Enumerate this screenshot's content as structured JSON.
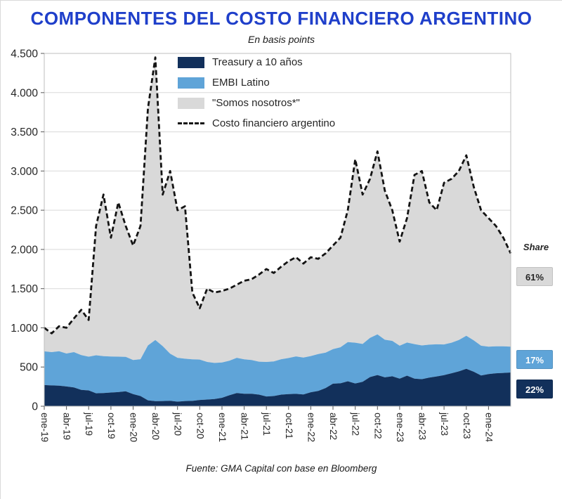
{
  "page": {
    "title": "COMPONENTES DEL COSTO FINANCIERO ARGENTINO",
    "subtitle": "En basis points",
    "source": "Fuente: GMA Capital con base en Bloomberg"
  },
  "share": {
    "label": "Share",
    "items": [
      {
        "value": "61%",
        "bg": "#d9d9d9",
        "fg": "#262626"
      },
      {
        "value": "17%",
        "bg": "#5fa4d8",
        "fg": "#ffffff"
      },
      {
        "value": "22%",
        "bg": "#12305b",
        "fg": "#ffffff"
      }
    ]
  },
  "chart_data": {
    "type": "area",
    "stacked": true,
    "title": "COMPONENTES DEL COSTO FINANCIERO ARGENTINO",
    "subtitle": "En basis points",
    "unit": "basis points",
    "ylim": [
      0,
      4500
    ],
    "y_step": 500,
    "y_tick_labels": [
      "0",
      "500",
      "1.000",
      "1.500",
      "2.000",
      "2.500",
      "3.000",
      "3.500",
      "4.000",
      "4.500"
    ],
    "x_tick_labels": [
      "ene-19",
      "abr-19",
      "jul-19",
      "oct-19",
      "ene-20",
      "abr-20",
      "jul-20",
      "oct-20",
      "ene-21",
      "abr-21",
      "jul-21",
      "oct-21",
      "ene-22",
      "abr-22",
      "jul-22",
      "oct-22",
      "ene-23",
      "abr-23",
      "jul-23",
      "oct-23",
      "ene-24"
    ],
    "x_tick_step": 3,
    "x_range_note": "monthly points from ene-19 to abr-24",
    "grid_color": "#d9d9d9",
    "border_color": "#bfbfbf",
    "legend_position": "top-center-inside",
    "series": [
      {
        "name": "Treasury a 10 años",
        "color": "#12305b",
        "values": [
          270,
          265,
          262,
          252,
          240,
          208,
          202,
          165,
          168,
          175,
          180,
          190,
          155,
          130,
          75,
          65,
          66,
          70,
          58,
          66,
          68,
          80,
          85,
          92,
          108,
          140,
          168,
          160,
          160,
          148,
          125,
          130,
          148,
          155,
          158,
          150,
          178,
          195,
          232,
          288,
          292,
          318,
          290,
          312,
          372,
          398,
          368,
          382,
          352,
          390,
          352,
          345,
          365,
          380,
          396,
          420,
          445,
          478,
          440,
          392,
          410,
          420,
          425,
          430
        ]
      },
      {
        "name": "EMBI Latino",
        "color": "#5fa4d8",
        "values": [
          430,
          425,
          440,
          420,
          450,
          445,
          430,
          485,
          470,
          460,
          452,
          440,
          435,
          470,
          700,
          780,
          700,
          600,
          560,
          540,
          530,
          515,
          480,
          460,
          450,
          440,
          450,
          438,
          430,
          420,
          440,
          442,
          452,
          460,
          478,
          470,
          462,
          470,
          452,
          440,
          460,
          500,
          520,
          482,
          500,
          518,
          480,
          452,
          420,
          422,
          440,
          430,
          420,
          410,
          392,
          390,
          400,
          420,
          400,
          380,
          350,
          345,
          340,
          330
        ]
      },
      {
        "name": "\"Somos nosotros*\"",
        "color": "#d9d9d9",
        "values": [
          300,
          240,
          318,
          328,
          430,
          577,
          468,
          1650,
          2062,
          1515,
          1968,
          1670,
          1460,
          1700,
          3025,
          3605,
          1934,
          2330,
          1882,
          1944,
          852,
          655,
          935,
          898,
          912,
          920,
          932,
          1002,
          1030,
          1112,
          1185,
          1128,
          1180,
          1235,
          1264,
          1200,
          1260,
          1215,
          1266,
          1322,
          1398,
          1682,
          2340,
          1906,
          2028,
          2334,
          1902,
          1666,
          1328,
          1588,
          2158,
          2225,
          1815,
          1710,
          2062,
          2090,
          2155,
          2302,
          1960,
          1728,
          1640,
          1535,
          1385,
          1190
        ]
      }
    ],
    "line": {
      "name": "Costo financiero argentino",
      "color": "#141414",
      "dash": true,
      "values": [
        1000,
        930,
        1020,
        1000,
        1120,
        1230,
        1100,
        2300,
        2700,
        2150,
        2600,
        2300,
        2050,
        2300,
        3800,
        4450,
        2700,
        3000,
        2500,
        2550,
        1450,
        1250,
        1500,
        1450,
        1470,
        1500,
        1550,
        1600,
        1620,
        1680,
        1750,
        1700,
        1780,
        1850,
        1900,
        1820,
        1900,
        1880,
        1950,
        2050,
        2150,
        2500,
        3150,
        2700,
        2900,
        3250,
        2750,
        2500,
        2100,
        2400,
        2950,
        3000,
        2600,
        2500,
        2850,
        2900,
        3000,
        3200,
        2800,
        2500,
        2400,
        2300,
        2150,
        1950
      ]
    },
    "share_labels": {
      "somos_nosotros": "61%",
      "embi_latino": "17%",
      "treasury": "22%"
    }
  }
}
